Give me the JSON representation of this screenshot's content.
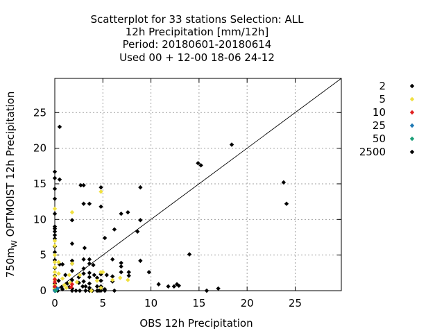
{
  "chart_data": {
    "type": "scatter",
    "title_lines": [
      "Scatterplot for   33 stations Selection: ALL",
      "12h Precipitation [mm/12h]",
      "Period: 20180601-20180614",
      "Used  00 + 12-00 18-06 24-12"
    ],
    "xlabel": "OBS 12h Precipitation",
    "ylabel": "750m",
    "ylabel_sub": "W",
    "ylabel_rest": " OPTMOIST 12h Precipitation",
    "xlim": [
      0,
      29.8
    ],
    "ylim": [
      0,
      29.8
    ],
    "xticks": [
      0,
      5,
      10,
      15,
      20,
      25
    ],
    "yticks": [
      0,
      5,
      10,
      15,
      20,
      25
    ],
    "grid": true,
    "reference_line": "y = x",
    "legend_position": "right",
    "series": [
      {
        "name": "2",
        "color": "#000000",
        "points": [
          [
            0,
            16.7
          ],
          [
            0,
            15.8
          ],
          [
            0,
            14.3
          ],
          [
            0,
            12.9
          ],
          [
            0,
            10.8
          ],
          [
            0,
            9.0
          ],
          [
            0,
            8.7
          ],
          [
            0,
            8.3
          ],
          [
            0,
            7.8
          ],
          [
            0,
            7.3
          ],
          [
            0,
            6.2
          ],
          [
            0,
            5.4
          ],
          [
            0,
            4.3
          ],
          [
            0,
            3.2
          ],
          [
            0,
            2.1
          ],
          [
            0,
            1.0
          ],
          [
            0,
            0.5
          ],
          [
            0,
            0.2
          ],
          [
            0,
            0
          ],
          [
            0.5,
            15.6
          ],
          [
            0.5,
            23.0
          ],
          [
            0.5,
            3.7
          ],
          [
            0.4,
            1.4
          ],
          [
            0.7,
            0.5
          ],
          [
            0.8,
            0.2
          ],
          [
            0.3,
            0
          ],
          [
            0.8,
            3.7
          ],
          [
            1.1,
            2.2
          ],
          [
            1.3,
            1.0
          ],
          [
            1.5,
            0.5
          ],
          [
            1.8,
            0.3
          ],
          [
            1.8,
            9.9
          ],
          [
            1.8,
            6.6
          ],
          [
            1.8,
            4.2
          ],
          [
            1.8,
            3.8
          ],
          [
            1.8,
            2.8
          ],
          [
            1.8,
            1.5
          ],
          [
            1.8,
            0
          ],
          [
            2.5,
            1.9
          ],
          [
            2.5,
            1.1
          ],
          [
            2.2,
            0
          ],
          [
            2.6,
            0
          ],
          [
            2.9,
            0.6
          ],
          [
            2.7,
            14.8
          ],
          [
            3.0,
            14.8
          ],
          [
            3.0,
            12.2
          ],
          [
            3.1,
            6.0
          ],
          [
            3.0,
            4.4
          ],
          [
            3.0,
            3.1
          ],
          [
            3.0,
            2.4
          ],
          [
            3.0,
            1.3
          ],
          [
            3.2,
            0.6
          ],
          [
            3.2,
            0
          ],
          [
            3.6,
            12.2
          ],
          [
            3.6,
            4.4
          ],
          [
            3.6,
            3.8
          ],
          [
            3.6,
            2.5
          ],
          [
            3.6,
            1.9
          ],
          [
            3.6,
            1.0
          ],
          [
            3.6,
            0.4
          ],
          [
            3.6,
            0
          ],
          [
            3.9,
            0
          ],
          [
            4.0,
            3.6
          ],
          [
            4.1,
            2.2
          ],
          [
            4.4,
            1.8
          ],
          [
            4.4,
            0.6
          ],
          [
            4.4,
            0
          ],
          [
            4.6,
            0
          ],
          [
            4.8,
            14.5
          ],
          [
            4.8,
            11.8
          ],
          [
            4.8,
            2.3
          ],
          [
            4.8,
            1.4
          ],
          [
            4.8,
            0.6
          ],
          [
            4.8,
            0
          ],
          [
            5.2,
            7.4
          ],
          [
            5.2,
            0.2
          ],
          [
            5.2,
            0
          ],
          [
            5.4,
            2.2
          ],
          [
            6.2,
            8.6
          ],
          [
            6.0,
            4.4
          ],
          [
            6.0,
            2.0
          ],
          [
            6.0,
            1.3
          ],
          [
            6.2,
            0
          ],
          [
            6.9,
            10.8
          ],
          [
            6.9,
            3.9
          ],
          [
            6.9,
            3.4
          ],
          [
            6.9,
            2.6
          ],
          [
            7.6,
            11.0
          ],
          [
            7.7,
            2.6
          ],
          [
            7.7,
            2.1
          ],
          [
            8.6,
            8.3
          ],
          [
            8.9,
            14.5
          ],
          [
            8.9,
            9.9
          ],
          [
            8.9,
            4.2
          ],
          [
            9.8,
            2.6
          ],
          [
            10.8,
            0.9
          ],
          [
            11.8,
            0.6
          ],
          [
            12.4,
            0.6
          ],
          [
            12.7,
            0.9
          ],
          [
            12.9,
            0.7
          ],
          [
            14.0,
            5.1
          ],
          [
            14.9,
            17.9
          ],
          [
            15.2,
            17.6
          ],
          [
            15.8,
            0
          ],
          [
            17.0,
            0.3
          ],
          [
            18.4,
            20.5
          ],
          [
            23.8,
            15.2
          ],
          [
            24.1,
            12.2
          ]
        ]
      },
      {
        "name": "5",
        "color": "#f0e040",
        "points": [
          [
            0,
            11.5
          ],
          [
            0,
            7.0
          ],
          [
            0,
            6.3
          ],
          [
            0,
            5.0
          ],
          [
            0,
            4.0
          ],
          [
            0,
            3.3
          ],
          [
            0,
            2.6
          ],
          [
            0,
            2.0
          ],
          [
            0,
            1.5
          ],
          [
            0,
            0.8
          ],
          [
            0,
            0.3
          ],
          [
            0.4,
            4.0
          ],
          [
            0.4,
            2.4
          ],
          [
            0.8,
            1.7
          ],
          [
            1.0,
            0.8
          ],
          [
            1.2,
            0.4
          ],
          [
            1.5,
            2.2
          ],
          [
            1.6,
            1.1
          ],
          [
            1.8,
            11.0
          ],
          [
            1.8,
            3.8
          ],
          [
            2.3,
            1.2
          ],
          [
            2.6,
            2.2
          ],
          [
            3.8,
            0
          ],
          [
            4.4,
            1.4
          ],
          [
            4.8,
            13.9
          ],
          [
            4.8,
            2.6
          ],
          [
            4.8,
            0.4
          ],
          [
            5.0,
            2.6
          ],
          [
            6.0,
            1.5
          ],
          [
            6.8,
            1.8
          ],
          [
            7.6,
            1.5
          ]
        ]
      },
      {
        "name": "10",
        "color": "#e02020",
        "points": [
          [
            0,
            1.6
          ],
          [
            0,
            1.2
          ],
          [
            0,
            0.6
          ],
          [
            1.7,
            0.5
          ],
          [
            1.8,
            0.9
          ]
        ]
      },
      {
        "name": "25",
        "color": "#1e78b4",
        "points": [
          [
            0,
            0
          ],
          [
            0.3,
            0.3
          ]
        ]
      },
      {
        "name": "50",
        "color": "#1a9e77",
        "points": [
          [
            0.1,
            0
          ]
        ]
      },
      {
        "name": "2500",
        "color": "#000000",
        "points": []
      }
    ]
  }
}
